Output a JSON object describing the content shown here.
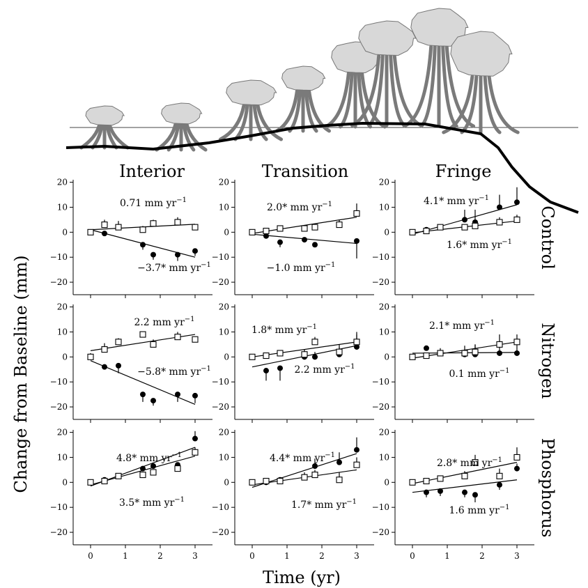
{
  "figure": {
    "ylabel": "Change from Baseline (mm)",
    "xlabel": "Time (yr)",
    "columns": [
      "Interior",
      "Transition",
      "Fringe"
    ],
    "rows": [
      "Control",
      "Nitrogen",
      "Phosphorus"
    ],
    "x_ticks": [
      "0",
      "1",
      "2",
      "3"
    ],
    "y_ticks": [
      "20",
      "10",
      "0",
      "−10",
      "−20"
    ]
  },
  "chart_data": [
    {
      "type": "scatter",
      "row": "Control",
      "column": "Interior",
      "xlim": [
        -0.5,
        3.5
      ],
      "ylim": [
        -25,
        21
      ],
      "open_rate": "0.71 mm yr",
      "closed_rate": "−3.7* mm yr",
      "open": {
        "x": [
          0,
          0.4,
          0.8,
          1.5,
          1.8,
          2.5,
          3.0
        ],
        "y": [
          0,
          3,
          2,
          1,
          3.5,
          4,
          2
        ],
        "err": [
          1,
          2,
          2.5,
          1.5,
          1.5,
          2,
          1
        ],
        "fit": [
          [
            0,
            1
          ],
          [
            3,
            3.2
          ]
        ]
      },
      "closed": {
        "x": [
          0,
          0.4,
          1.5,
          1.8,
          2.5,
          3.0
        ],
        "y": [
          0,
          -0.5,
          -5,
          -9,
          -9,
          -7.5
        ],
        "err": [
          0.5,
          0.5,
          2,
          2,
          2.5,
          2
        ],
        "fit": [
          [
            0,
            1
          ],
          [
            3,
            -10
          ]
        ]
      }
    },
    {
      "type": "scatter",
      "row": "Control",
      "column": "Transition",
      "xlim": [
        -0.5,
        3.5
      ],
      "ylim": [
        -25,
        21
      ],
      "open_rate": "2.0* mm yr",
      "closed_rate": "−1.0 mm yr",
      "open": {
        "x": [
          0,
          0.4,
          0.8,
          1.5,
          1.8,
          2.5,
          3.0
        ],
        "y": [
          0,
          0.5,
          1.5,
          1.5,
          2,
          3,
          7.5
        ],
        "err": [
          0.5,
          0.5,
          0.5,
          1,
          1,
          2,
          4
        ],
        "fit": [
          [
            0,
            -0.5
          ],
          [
            3,
            6
          ]
        ]
      },
      "closed": {
        "x": [
          0,
          0.4,
          0.8,
          1.5,
          1.8,
          3.0
        ],
        "y": [
          0,
          -1.5,
          -4,
          -3,
          -5,
          -3.5
        ],
        "err": [
          0.5,
          1,
          2,
          1,
          1,
          7
        ],
        "fit": [
          [
            0,
            -0.8
          ],
          [
            3,
            -4.5
          ]
        ]
      }
    },
    {
      "type": "scatter",
      "row": "Control",
      "column": "Fringe",
      "xlim": [
        -0.5,
        3.5
      ],
      "ylim": [
        -25,
        21
      ],
      "open_rate": "1.6* mm yr",
      "closed_rate": "4.1* mm yr",
      "open": {
        "x": [
          0,
          0.4,
          0.8,
          1.5,
          1.8,
          2.5,
          3.0
        ],
        "y": [
          0,
          0.5,
          2,
          2,
          2.5,
          4,
          5
        ],
        "err": [
          0.5,
          0.5,
          0.5,
          1,
          1,
          2,
          2
        ],
        "fit": [
          [
            0,
            -0.2
          ],
          [
            3,
            4.5
          ]
        ]
      },
      "closed": {
        "x": [
          0,
          0.4,
          0.8,
          1.5,
          1.8,
          2.5,
          3.0
        ],
        "y": [
          0,
          1,
          2,
          5,
          4,
          10,
          12
        ],
        "err": [
          0.5,
          0.5,
          0.5,
          4,
          5,
          5,
          6
        ],
        "fit": [
          [
            0,
            -0.8
          ],
          [
            3,
            11
          ]
        ]
      }
    },
    {
      "type": "scatter",
      "row": "Nitrogen",
      "column": "Interior",
      "xlim": [
        -0.5,
        3.5
      ],
      "ylim": [
        -25,
        21
      ],
      "open_rate": "2.2 mm yr",
      "closed_rate": "−5.8* mm yr",
      "open": {
        "x": [
          0,
          0.4,
          0.8,
          1.5,
          1.8,
          2.5,
          3.0
        ],
        "y": [
          0,
          3,
          6,
          9,
          5,
          8,
          7
        ],
        "err": [
          1.5,
          2.5,
          1.5,
          1,
          2,
          2,
          1
        ],
        "fit": [
          [
            0,
            2.5
          ],
          [
            3,
            9
          ]
        ]
      },
      "closed": {
        "x": [
          0,
          0.4,
          0.8,
          1.5,
          1.8,
          2.5,
          3.0
        ],
        "y": [
          0,
          -4,
          -3.5,
          -15,
          -17.5,
          -15,
          -15.5
        ],
        "err": [
          0.5,
          1,
          3,
          3,
          2,
          3,
          3
        ],
        "fit": [
          [
            0,
            -1.5
          ],
          [
            3,
            -19
          ]
        ]
      }
    },
    {
      "type": "scatter",
      "row": "Nitrogen",
      "column": "Transition",
      "xlim": [
        -0.5,
        3.5
      ],
      "ylim": [
        -25,
        21
      ],
      "open_rate": "1.8* mm yr",
      "closed_rate": "2.2 mm yr",
      "open": {
        "x": [
          0,
          0.4,
          0.8,
          1.5,
          1.8,
          2.5,
          3.0
        ],
        "y": [
          0,
          0.5,
          1.5,
          1,
          6,
          2,
          6
        ],
        "err": [
          0.5,
          1,
          1,
          1.5,
          2,
          3,
          4
        ],
        "fit": [
          [
            0,
            0
          ],
          [
            3,
            6
          ]
        ]
      },
      "closed": {
        "x": [
          0,
          0.4,
          0.8,
          1.5,
          1.8,
          2.5,
          3.0
        ],
        "y": [
          0,
          -5.5,
          -4.5,
          0,
          0,
          1,
          4
        ],
        "err": [
          0.5,
          4,
          5,
          3,
          2,
          3,
          5
        ],
        "fit": [
          [
            0,
            -4
          ],
          [
            3,
            4.5
          ]
        ]
      }
    },
    {
      "type": "scatter",
      "row": "Nitrogen",
      "column": "Fringe",
      "xlim": [
        -0.5,
        3.5
      ],
      "ylim": [
        -25,
        21
      ],
      "open_rate": "2.1* mm yr",
      "closed_rate": "0.1 mm yr",
      "open": {
        "x": [
          0,
          0.4,
          0.8,
          1.5,
          1.8,
          2.5,
          3.0
        ],
        "y": [
          0,
          0.5,
          1.5,
          1.5,
          2,
          5,
          6
        ],
        "err": [
          0.5,
          0.5,
          1,
          3,
          3,
          4,
          3
        ],
        "fit": [
          [
            0,
            -0.5
          ],
          [
            3,
            6
          ]
        ]
      },
      "closed": {
        "x": [
          0,
          0.4,
          0.8,
          1.5,
          1.8,
          2.5,
          3.0
        ],
        "y": [
          0,
          3.5,
          1.5,
          1,
          1,
          1.5,
          1.5
        ],
        "err": [
          0.5,
          1,
          2,
          2,
          4,
          3,
          5
        ],
        "fit": [
          [
            0,
            1.5
          ],
          [
            3,
            1.8
          ]
        ]
      }
    },
    {
      "type": "scatter",
      "row": "Phosphorus",
      "column": "Interior",
      "xlim": [
        -0.5,
        3.5
      ],
      "ylim": [
        -25,
        21
      ],
      "open_rate": "3.5* mm yr",
      "closed_rate": "4.8* mm yr",
      "open": {
        "x": [
          0,
          0.4,
          0.8,
          1.5,
          1.8,
          2.5,
          3.0
        ],
        "y": [
          0,
          0.5,
          2.5,
          3,
          4,
          5.5,
          12
        ],
        "err": [
          0.5,
          0.5,
          1,
          1,
          1,
          1,
          2
        ],
        "fit": [
          [
            0,
            -1
          ],
          [
            3,
            10.5
          ]
        ]
      },
      "closed": {
        "x": [
          0,
          0.4,
          1.5,
          1.8,
          2.5,
          3.0
        ],
        "y": [
          0,
          1,
          5.5,
          6.5,
          7,
          17.5
        ],
        "err": [
          0.5,
          0.5,
          1,
          1,
          1,
          3
        ],
        "fit": [
          [
            0,
            -1.5
          ],
          [
            3,
            14
          ]
        ]
      }
    },
    {
      "type": "scatter",
      "row": "Phosphorus",
      "column": "Transition",
      "xlim": [
        -0.5,
        3.5
      ],
      "ylim": [
        -25,
        21
      ],
      "open_rate": "1.7* mm yr",
      "closed_rate": "4.4* mm yr",
      "open": {
        "x": [
          0,
          0.4,
          0.8,
          1.5,
          1.8,
          2.5,
          3.0
        ],
        "y": [
          0,
          0.5,
          0.5,
          2,
          3,
          1,
          7
        ],
        "err": [
          0.5,
          0.5,
          0.5,
          2,
          2,
          3,
          3
        ],
        "fit": [
          [
            0,
            -1
          ],
          [
            3,
            5
          ]
        ]
      },
      "closed": {
        "x": [
          0,
          0.4,
          0.8,
          1.8,
          2.5,
          3.0
        ],
        "y": [
          0,
          0,
          1,
          6.5,
          8,
          13
        ],
        "err": [
          0.5,
          0.5,
          0.5,
          3,
          4,
          5
        ],
        "fit": [
          [
            0,
            -2
          ],
          [
            3,
            11.5
          ]
        ]
      }
    },
    {
      "type": "scatter",
      "row": "Phosphorus",
      "column": "Fringe",
      "xlim": [
        -0.5,
        3.5
      ],
      "ylim": [
        -25,
        21
      ],
      "open_rate": "2.8* mm yr",
      "closed_rate": "1.6 mm yr",
      "open": {
        "x": [
          0,
          0.4,
          0.8,
          1.5,
          1.8,
          2.5,
          3.0
        ],
        "y": [
          0,
          0.5,
          1.5,
          2.5,
          8,
          2.5,
          10
        ],
        "err": [
          0.5,
          0.5,
          1,
          2,
          3,
          3,
          4
        ],
        "fit": [
          [
            0,
            -0.5
          ],
          [
            3,
            8
          ]
        ]
      },
      "closed": {
        "x": [
          0,
          0.4,
          0.8,
          1.5,
          1.8,
          2.5,
          3.0
        ],
        "y": [
          0,
          -4,
          -3.5,
          -4,
          -5,
          -1,
          5.5
        ],
        "err": [
          0.5,
          2,
          2,
          2,
          3,
          2,
          2
        ],
        "fit": [
          [
            0,
            -4
          ],
          [
            3,
            1
          ]
        ]
      }
    }
  ]
}
